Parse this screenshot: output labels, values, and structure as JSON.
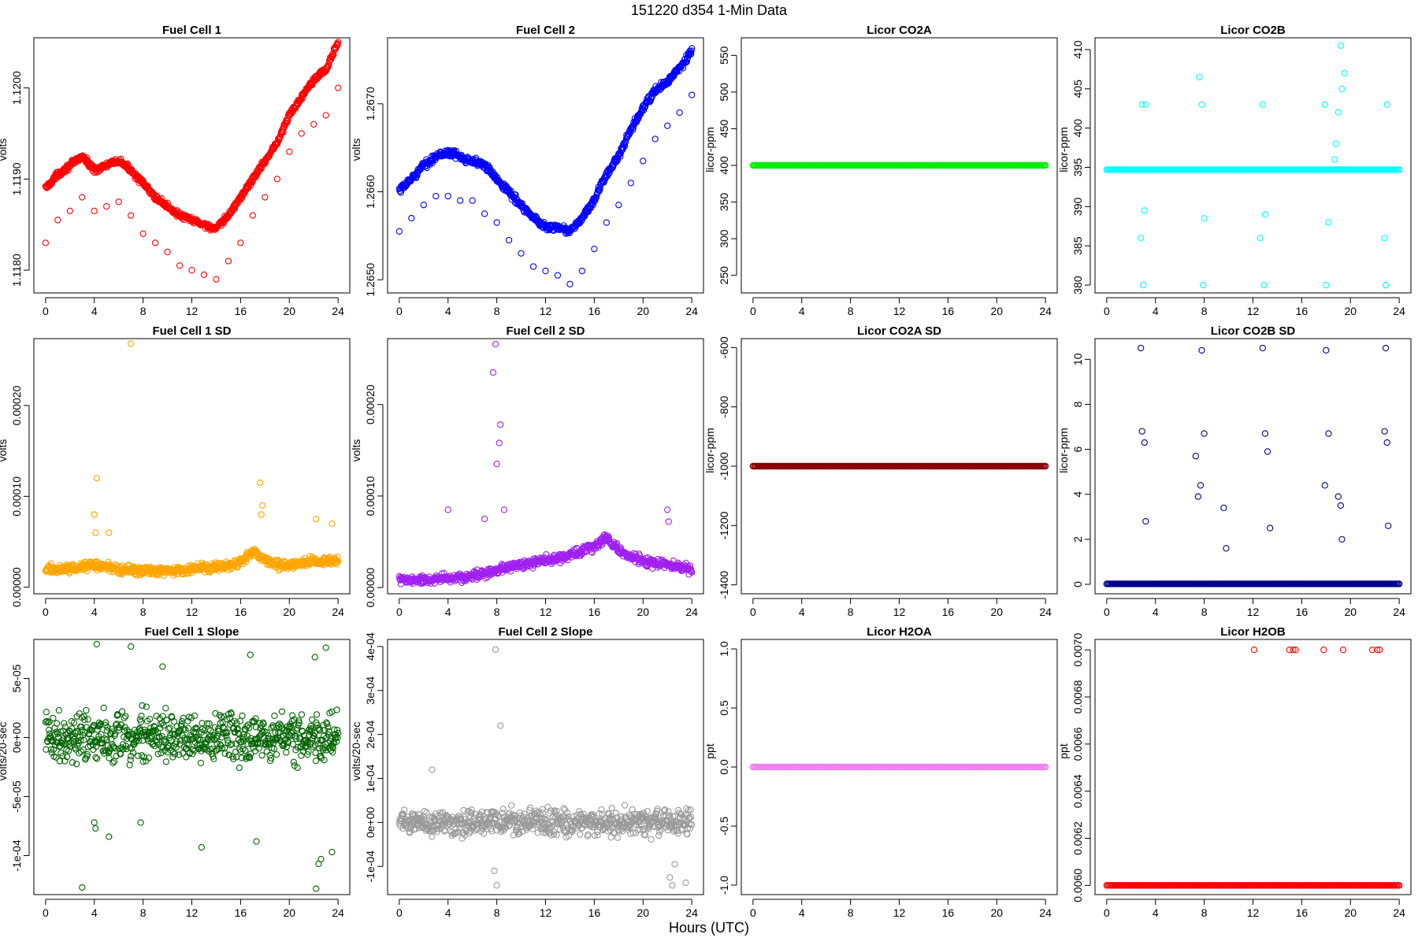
{
  "figure": {
    "title": "151220   d354   1-Min Data",
    "xlabel": "Hours (UTC)"
  },
  "chart_data": [
    {
      "type": "scatter",
      "title": "Fuel Cell 1",
      "xlabel": "",
      "ylabel": "volts",
      "color": "#ff0000",
      "xlim": [
        -0.96,
        24.96
      ],
      "ylim": [
        1.11775,
        1.12055
      ],
      "xticks": [
        0,
        4,
        8,
        12,
        16,
        20,
        24
      ],
      "xtick_labels": [
        "0",
        "4",
        "8",
        "12",
        "16",
        "20",
        "24"
      ],
      "yticks": [
        1.118,
        1.119,
        1.12
      ],
      "ytick_labels": [
        "1.1180",
        "1.1190",
        "1.1200"
      ],
      "series": [
        {
          "x": [
            0,
            1,
            2,
            3,
            4,
            5,
            6,
            7,
            8,
            9,
            10,
            11,
            12,
            13,
            14,
            15,
            16,
            17,
            18,
            19,
            20,
            21,
            22,
            23,
            24
          ],
          "y": [
            1.1189,
            1.11905,
            1.11915,
            1.11925,
            1.1191,
            1.11915,
            1.1192,
            1.1191,
            1.11895,
            1.1188,
            1.1187,
            1.1186,
            1.11855,
            1.1185,
            1.11845,
            1.1186,
            1.1188,
            1.119,
            1.1192,
            1.1194,
            1.1197,
            1.1199,
            1.1201,
            1.1202,
            1.1205
          ]
        },
        {
          "x": [
            0,
            1,
            2,
            3,
            4,
            5,
            6,
            7,
            8,
            9,
            10,
            11,
            12,
            13,
            14,
            15,
            16,
            17,
            18,
            19,
            20,
            21,
            22,
            23,
            24
          ],
          "y": [
            1.1183,
            1.11855,
            1.11865,
            1.1188,
            1.11865,
            1.1187,
            1.11875,
            1.1186,
            1.1184,
            1.1183,
            1.1182,
            1.11805,
            1.118,
            1.11795,
            1.1179,
            1.1181,
            1.1183,
            1.1186,
            1.1188,
            1.119,
            1.1193,
            1.1195,
            1.1196,
            1.1197,
            1.12
          ]
        }
      ]
    },
    {
      "type": "scatter",
      "title": "Fuel Cell 2",
      "xlabel": "",
      "ylabel": "volts",
      "color": "#0000ff",
      "xlim": [
        -0.96,
        24.96
      ],
      "ylim": [
        1.26485,
        1.26775
      ],
      "xticks": [
        0,
        4,
        8,
        12,
        16,
        20,
        24
      ],
      "xtick_labels": [
        "0",
        "4",
        "8",
        "12",
        "16",
        "20",
        "24"
      ],
      "yticks": [
        1.265,
        1.266,
        1.267
      ],
      "ytick_labels": [
        "1.2650",
        "1.2660",
        "1.2670"
      ],
      "series": [
        {
          "x": [
            0,
            1,
            2,
            3,
            4,
            5,
            6,
            7,
            8,
            9,
            10,
            11,
            12,
            13,
            14,
            15,
            16,
            17,
            18,
            19,
            20,
            21,
            22,
            23,
            24
          ],
          "y": [
            1.266,
            1.26615,
            1.2663,
            1.2664,
            1.26645,
            1.2664,
            1.26635,
            1.2663,
            1.26615,
            1.266,
            1.26585,
            1.2657,
            1.2656,
            1.2656,
            1.26555,
            1.2657,
            1.2659,
            1.2662,
            1.2664,
            1.2667,
            1.26695,
            1.26715,
            1.26725,
            1.2674,
            1.2676
          ]
        },
        {
          "x": [
            0,
            1,
            2,
            3,
            4,
            5,
            6,
            7,
            8,
            9,
            10,
            11,
            12,
            13,
            14,
            15,
            16,
            17,
            18,
            19,
            20,
            21,
            22,
            23,
            24
          ],
          "y": [
            1.26555,
            1.2657,
            1.26585,
            1.26595,
            1.26595,
            1.2659,
            1.2659,
            1.26575,
            1.26565,
            1.26545,
            1.2653,
            1.26515,
            1.2651,
            1.26505,
            1.26495,
            1.2651,
            1.26535,
            1.26565,
            1.26585,
            1.2661,
            1.26635,
            1.2666,
            1.26675,
            1.2669,
            1.2671
          ]
        }
      ]
    },
    {
      "type": "scatter",
      "title": "Licor CO2A",
      "xlabel": "",
      "ylabel": "licor-ppm",
      "color": "#00ee00",
      "xlim": [
        -0.96,
        24.96
      ],
      "ylim": [
        226,
        574
      ],
      "xticks": [
        0,
        4,
        8,
        12,
        16,
        20,
        24
      ],
      "xtick_labels": [
        "0",
        "4",
        "8",
        "12",
        "16",
        "20",
        "24"
      ],
      "yticks": [
        250,
        300,
        350,
        400,
        450,
        500,
        550
      ],
      "ytick_labels": [
        "250",
        "300",
        "350",
        "400",
        "450",
        "500",
        "550"
      ],
      "series": [
        {
          "x": [
            0,
            24
          ],
          "y": [
            400,
            400
          ]
        }
      ]
    },
    {
      "type": "scatter",
      "title": "Licor CO2B",
      "xlabel": "",
      "ylabel": "licor-ppm",
      "color": "#00ffff",
      "xlim": [
        -0.96,
        24.96
      ],
      "ylim": [
        379.0,
        411.5
      ],
      "xticks": [
        0,
        4,
        8,
        12,
        16,
        20,
        24
      ],
      "xtick_labels": [
        "0",
        "4",
        "8",
        "12",
        "16",
        "20",
        "24"
      ],
      "yticks": [
        380,
        385,
        390,
        395,
        400,
        405,
        410
      ],
      "ytick_labels": [
        "380",
        "385",
        "390",
        "395",
        "400",
        "405",
        "410"
      ],
      "series": [
        {
          "x": [
            0,
            24
          ],
          "y": [
            394.7,
            394.7
          ]
        },
        {
          "x": [
            2.8,
            2.9,
            3.0,
            3.1,
            3.2,
            7.6,
            7.8,
            7.9,
            8.0,
            12.6,
            12.8,
            12.9,
            13.0,
            17.9,
            18.0,
            18.2,
            18.7,
            18.8,
            19.0,
            19.2,
            19.3,
            19.5,
            22.8,
            22.9,
            23.0
          ],
          "y": [
            386,
            403,
            380,
            389.5,
            403,
            406.5,
            403,
            380,
            388.5,
            386,
            403,
            380,
            389,
            403,
            380,
            388,
            396,
            398,
            402,
            410.5,
            405,
            407,
            386,
            380,
            403
          ]
        }
      ]
    },
    {
      "type": "scatter",
      "title": "Fuel Cell 1 SD",
      "xlabel": "",
      "ylabel": "volts",
      "color": "#ffa500",
      "xlim": [
        -0.96,
        24.96
      ],
      "ylim": [
        -7.2e-06,
        0.0002736
      ],
      "xticks": [
        0,
        4,
        8,
        12,
        16,
        20,
        24
      ],
      "xtick_labels": [
        "0",
        "4",
        "8",
        "12",
        "16",
        "20",
        "24"
      ],
      "yticks": [
        0,
        0.0001,
        0.0002
      ],
      "ytick_labels": [
        "0.00000",
        "0.00010",
        "0.00020"
      ],
      "series": [
        {
          "x": [
            0,
            2,
            4,
            6,
            8,
            10,
            12,
            14,
            16,
            17,
            18,
            19,
            20,
            22,
            24
          ],
          "y": [
            2e-05,
            2e-05,
            2.5e-05,
            2e-05,
            1.8e-05,
            1.8e-05,
            2e-05,
            2.2e-05,
            2.8e-05,
            4e-05,
            3e-05,
            2.5e-05,
            2.5e-05,
            2.8e-05,
            3e-05
          ]
        },
        {
          "x": [
            4.0,
            4.2,
            4.1,
            5.2,
            7.0,
            17.6,
            17.8,
            17.7,
            22.2,
            23.5
          ],
          "y": [
            8e-05,
            0.00012,
            6e-05,
            6e-05,
            0.000268,
            0.000115,
            9e-05,
            8e-05,
            7.5e-05,
            7e-05
          ]
        }
      ]
    },
    {
      "type": "scatter",
      "title": "Fuel Cell 2 SD",
      "xlabel": "",
      "ylabel": "volts",
      "color": "#a020f0",
      "xlim": [
        -0.96,
        24.96
      ],
      "ylim": [
        -6.8e-06,
        0.000272
      ],
      "xticks": [
        0,
        4,
        8,
        12,
        16,
        20,
        24
      ],
      "xtick_labels": [
        "0",
        "4",
        "8",
        "12",
        "16",
        "20",
        "24"
      ],
      "yticks": [
        0,
        0.0001,
        0.0002
      ],
      "ytick_labels": [
        "0.00000",
        "0.00010",
        "0.00020"
      ],
      "series": [
        {
          "x": [
            0,
            2,
            4,
            6,
            8,
            10,
            12,
            14,
            16,
            17,
            18,
            20,
            22,
            24
          ],
          "y": [
            8e-06,
            8e-06,
            1e-05,
            1.2e-05,
            2e-05,
            2.5e-05,
            3e-05,
            3.5e-05,
            4.5e-05,
            5.5e-05,
            4e-05,
            2.8e-05,
            2.5e-05,
            2e-05
          ]
        },
        {
          "x": [
            7.7,
            7.9,
            8.0,
            8.2,
            8.3,
            4.0,
            7.0,
            8.6,
            22.0,
            22.1
          ],
          "y": [
            0.000235,
            0.000266,
            0.000135,
            0.000158,
            0.000178,
            8.5e-05,
            7.5e-05,
            8.5e-05,
            8.5e-05,
            7.2e-05
          ]
        }
      ]
    },
    {
      "type": "scatter",
      "title": "Licor CO2A SD",
      "xlabel": "",
      "ylabel": "licor-ppm",
      "color": "#8b0000",
      "xlim": [
        -0.96,
        24.96
      ],
      "ylim": [
        -1430,
        -570
      ],
      "xticks": [
        0,
        4,
        8,
        12,
        16,
        20,
        24
      ],
      "xtick_labels": [
        "0",
        "4",
        "8",
        "12",
        "16",
        "20",
        "24"
      ],
      "yticks": [
        -1400,
        -1200,
        -1000,
        -800,
        -600
      ],
      "ytick_labels": [
        "-1400",
        "-1200",
        "-1000",
        "-800",
        "-600"
      ],
      "series": [
        {
          "x": [
            0,
            24
          ],
          "y": [
            -1000,
            -1000
          ]
        }
      ]
    },
    {
      "type": "scatter",
      "title": "Licor CO2B SD",
      "xlabel": "",
      "ylabel": "licor-ppm",
      "color": "#00008b",
      "xlim": [
        -0.96,
        24.96
      ],
      "ylim": [
        -0.42,
        10.92
      ],
      "xticks": [
        0,
        4,
        8,
        12,
        16,
        20,
        24
      ],
      "xtick_labels": [
        "0",
        "4",
        "8",
        "12",
        "16",
        "20",
        "24"
      ],
      "yticks": [
        0,
        2,
        4,
        6,
        8,
        10
      ],
      "ytick_labels": [
        "0",
        "2",
        "4",
        "6",
        "8",
        "10"
      ],
      "series": [
        {
          "x": [
            0,
            24
          ],
          "y": [
            0.02,
            0.02
          ]
        },
        {
          "x": [
            2.8,
            2.9,
            3.1,
            3.2,
            7.3,
            7.5,
            7.7,
            7.8,
            8.0,
            9.6,
            9.8,
            12.8,
            13.0,
            13.2,
            13.4,
            17.9,
            18.0,
            18.2,
            19.0,
            19.2,
            19.3,
            22.8,
            22.9,
            23.0,
            23.1
          ],
          "y": [
            10.5,
            6.8,
            6.3,
            2.8,
            5.7,
            3.9,
            4.4,
            10.4,
            6.7,
            3.4,
            1.6,
            10.5,
            6.7,
            5.9,
            2.5,
            4.4,
            10.4,
            6.7,
            3.9,
            3.5,
            2.0,
            6.8,
            10.5,
            6.3,
            2.6
          ]
        }
      ]
    },
    {
      "type": "scatter",
      "title": "Fuel Cell 1 Slope",
      "xlabel": "",
      "ylabel": "volts/20-sec",
      "color": "#006400",
      "xlim": [
        -0.96,
        24.96
      ],
      "ylim": [
        -0.000133,
        8.3e-05
      ],
      "xticks": [
        0,
        4,
        8,
        12,
        16,
        20,
        24
      ],
      "xtick_labels": [
        "0",
        "4",
        "8",
        "12",
        "16",
        "20",
        "24"
      ],
      "yticks": [
        -0.0001,
        -5e-05,
        0,
        5e-05
      ],
      "ytick_labels": [
        "-1e-04",
        "-5e-05",
        "0e+00",
        "5e-05"
      ],
      "series": [
        {
          "x": [
            0,
            4,
            8,
            12,
            16,
            20,
            24
          ],
          "y": [
            0,
            0,
            0,
            0,
            0,
            0,
            0
          ]
        },
        {
          "x": [
            3.0,
            4.2,
            4.0,
            5.2,
            7.0,
            7.8,
            12.8,
            16.8,
            22.2,
            22.4,
            22.6,
            22.1,
            23.5,
            23.0,
            4.1,
            9.6,
            17.3
          ],
          "y": [
            -0.000127,
            7.9e-05,
            -7.2e-05,
            -8.4e-05,
            7.7e-05,
            -7.2e-05,
            -9.3e-05,
            7e-05,
            -0.000128,
            -0.000107,
            -0.000103,
            6.8e-05,
            -9.7e-05,
            7.6e-05,
            -7.7e-05,
            6e-05,
            -8.8e-05
          ]
        }
      ]
    },
    {
      "type": "scatter",
      "title": "Fuel Cell 2 Slope",
      "xlabel": "",
      "ylabel": "volts/20-sec",
      "color": "#999999",
      "xlim": [
        -0.96,
        24.96
      ],
      "ylim": [
        -0.000164,
        0.000416
      ],
      "xticks": [
        0,
        4,
        8,
        12,
        16,
        20,
        24
      ],
      "xtick_labels": [
        "0",
        "4",
        "8",
        "12",
        "16",
        "20",
        "24"
      ],
      "yticks": [
        -0.0001,
        0,
        0.0001,
        0.0002,
        0.0003,
        0.0004
      ],
      "ytick_labels": [
        "-1e-04",
        "0e+00",
        "1e-04",
        "2e-04",
        "3e-04",
        "4e-04"
      ],
      "series": [
        {
          "x": [
            0,
            4,
            8,
            12,
            16,
            20,
            24
          ],
          "y": [
            0,
            0,
            0,
            0,
            0,
            0,
            0
          ]
        },
        {
          "x": [
            7.9,
            8.3,
            8.0,
            7.8,
            22.2,
            22.4,
            22.6,
            23.5,
            2.7
          ],
          "y": [
            0.000393,
            0.00022,
            -0.000143,
            -0.00011,
            -0.000125,
            -0.000143,
            -9.5e-05,
            -0.000137,
            0.00012
          ]
        }
      ]
    },
    {
      "type": "scatter",
      "title": "Licor H2OA",
      "xlabel": "",
      "ylabel": "ppt",
      "color": "#ee82ee",
      "xlim": [
        -0.96,
        24.96
      ],
      "ylim": [
        -1.08,
        1.08
      ],
      "xticks": [
        0,
        4,
        8,
        12,
        16,
        20,
        24
      ],
      "xtick_labels": [
        "0",
        "4",
        "8",
        "12",
        "16",
        "20",
        "24"
      ],
      "yticks": [
        -1,
        -0.5,
        0,
        0.5,
        1
      ],
      "ytick_labels": [
        "-1.0",
        "-0.5",
        "0.0",
        "0.5",
        "1.0"
      ],
      "series": [
        {
          "x": [
            0,
            24
          ],
          "y": [
            0,
            0
          ]
        }
      ]
    },
    {
      "type": "scatter",
      "title": "Licor H2OB",
      "xlabel": "",
      "ylabel": "ppt",
      "color": "#ff0000",
      "xlim": [
        -0.96,
        24.96
      ],
      "ylim": [
        0.005961,
        0.007044
      ],
      "xticks": [
        0,
        4,
        8,
        12,
        16,
        20,
        24
      ],
      "xtick_labels": [
        "0",
        "4",
        "8",
        "12",
        "16",
        "20",
        "24"
      ],
      "yticks": [
        0.006,
        0.0062,
        0.0064,
        0.0066,
        0.0068,
        0.007
      ],
      "ytick_labels": [
        "0.0060",
        "0.0062",
        "0.0064",
        "0.0066",
        "0.0068",
        "0.0070"
      ],
      "series": [
        {
          "x": [
            0,
            24
          ],
          "y": [
            0.006,
            0.006
          ]
        },
        {
          "x": [
            12.1,
            15.0,
            15.3,
            15.5,
            17.8,
            19.4,
            21.8,
            22.2,
            22.4
          ],
          "y": [
            0.007,
            0.007,
            0.007,
            0.007,
            0.007,
            0.007,
            0.007,
            0.007,
            0.007
          ]
        }
      ]
    }
  ]
}
